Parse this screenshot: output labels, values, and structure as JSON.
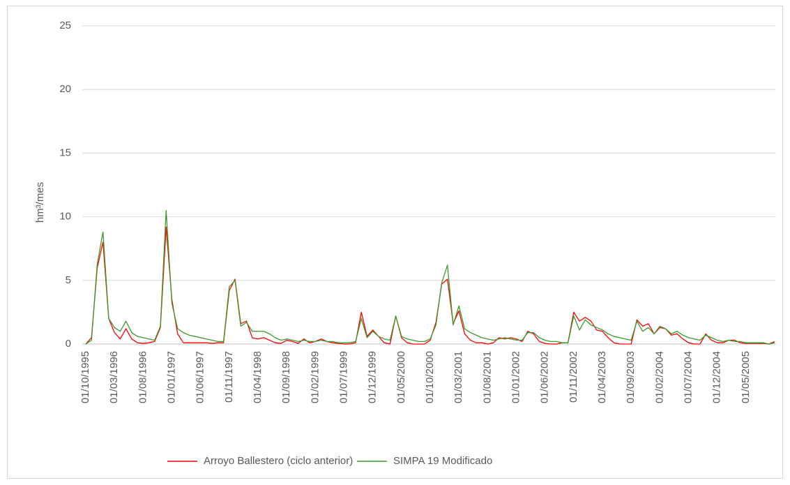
{
  "chart_data": {
    "type": "line",
    "y_label": "hm³/mes",
    "ylim": [
      0,
      25
    ],
    "yticks": [
      0,
      5,
      10,
      15,
      20,
      25
    ],
    "grid": true,
    "categories": [
      "01/10/1995",
      null,
      null,
      null,
      null,
      "01/03/1996",
      null,
      null,
      null,
      null,
      "01/08/1996",
      null,
      null,
      null,
      null,
      "01/01/1997",
      null,
      null,
      null,
      null,
      "01/06/1997",
      null,
      null,
      null,
      null,
      "01/11/1997",
      null,
      null,
      null,
      null,
      "01/04/1998",
      null,
      null,
      null,
      null,
      "01/09/1998",
      null,
      null,
      null,
      null,
      "01/02/1999",
      null,
      null,
      null,
      null,
      "01/07/1999",
      null,
      null,
      null,
      null,
      "01/12/1999",
      null,
      null,
      null,
      null,
      "01/05/2000",
      null,
      null,
      null,
      null,
      "01/10/2000",
      null,
      null,
      null,
      null,
      "01/03/2001",
      null,
      null,
      null,
      null,
      "01/08/2001",
      null,
      null,
      null,
      null,
      "01/01/2002",
      null,
      null,
      null,
      null,
      "01/06/2002",
      null,
      null,
      null,
      null,
      "01/11/2002",
      null,
      null,
      null,
      null,
      "01/04/2003",
      null,
      null,
      null,
      null,
      "01/09/2003",
      null,
      null,
      null,
      null,
      "01/02/2004",
      null,
      null,
      null,
      null,
      "01/07/2004",
      null,
      null,
      null,
      null,
      "01/12/2004",
      null,
      null,
      null,
      null,
      "01/05/2005",
      null,
      null,
      null,
      null,
      null
    ],
    "series": [
      {
        "name": "Arroyo Ballestero (ciclo anterior)",
        "color": "#ff0000",
        "values": [
          0,
          0.5,
          6.0,
          8.0,
          2.0,
          0.9,
          0.4,
          1.2,
          0.4,
          0.1,
          0.05,
          0.1,
          0.2,
          1.3,
          9.2,
          3.5,
          0.8,
          0.1,
          0.1,
          0.1,
          0.1,
          0.1,
          0.05,
          0.1,
          0.1,
          4.2,
          5.1,
          1.6,
          1.8,
          0.5,
          0.4,
          0.5,
          0.3,
          0.1,
          0.05,
          0.3,
          0.2,
          0.05,
          0.4,
          0.1,
          0.2,
          0.4,
          0.2,
          0.1,
          0.05,
          0,
          0,
          0.1,
          2.5,
          0.6,
          1.1,
          0.6,
          0.1,
          0,
          2.2,
          0.5,
          0.1,
          0,
          0,
          0,
          0.3,
          1.7,
          4.7,
          5.1,
          1.6,
          2.6,
          0.8,
          0.3,
          0.1,
          0.1,
          0,
          0.1,
          0.5,
          0.4,
          0.5,
          0.4,
          0.2,
          1.0,
          0.8,
          0.2,
          0.05,
          0,
          0,
          0.1,
          0.1,
          2.5,
          1.8,
          2.1,
          1.8,
          1.1,
          1.0,
          0.5,
          0.1,
          0,
          0,
          0,
          1.9,
          1.4,
          1.6,
          0.8,
          1.3,
          1.2,
          0.7,
          0.8,
          0.4,
          0.1,
          0,
          0,
          0.8,
          0.3,
          0.1,
          0.1,
          0.3,
          0.3,
          0.1,
          0.05,
          0.05,
          0.05,
          0.05,
          0,
          0.2
        ]
      },
      {
        "name": "SIMPA 19 Modificado",
        "color": "#3a9a2a",
        "values": [
          0,
          0.3,
          6.3,
          8.8,
          2.0,
          1.3,
          1.0,
          1.8,
          0.9,
          0.6,
          0.5,
          0.4,
          0.3,
          1.4,
          10.5,
          3.2,
          1.2,
          0.9,
          0.7,
          0.6,
          0.5,
          0.4,
          0.3,
          0.2,
          0.2,
          4.5,
          5.0,
          1.4,
          1.7,
          1.0,
          1.0,
          1.0,
          0.8,
          0.5,
          0.3,
          0.4,
          0.3,
          0.2,
          0.3,
          0.2,
          0.2,
          0.3,
          0.2,
          0.2,
          0.1,
          0.1,
          0.1,
          0.2,
          2.0,
          0.5,
          1.0,
          0.6,
          0.4,
          0.3,
          2.2,
          0.6,
          0.4,
          0.3,
          0.2,
          0.2,
          0.4,
          1.5,
          4.8,
          6.2,
          1.5,
          3.0,
          1.2,
          0.9,
          0.7,
          0.5,
          0.4,
          0.3,
          0.4,
          0.5,
          0.4,
          0.3,
          0.3,
          0.9,
          0.9,
          0.5,
          0.3,
          0.2,
          0.2,
          0.1,
          0.1,
          2.2,
          1.1,
          1.9,
          1.5,
          1.3,
          1.1,
          0.8,
          0.6,
          0.5,
          0.4,
          0.3,
          1.8,
          1.0,
          1.3,
          0.8,
          1.4,
          1.2,
          0.8,
          1.0,
          0.7,
          0.5,
          0.4,
          0.3,
          0.7,
          0.5,
          0.3,
          0.2,
          0.3,
          0.2,
          0.2,
          0.1,
          0.1,
          0.1,
          0.1,
          0,
          0.1
        ]
      }
    ]
  }
}
